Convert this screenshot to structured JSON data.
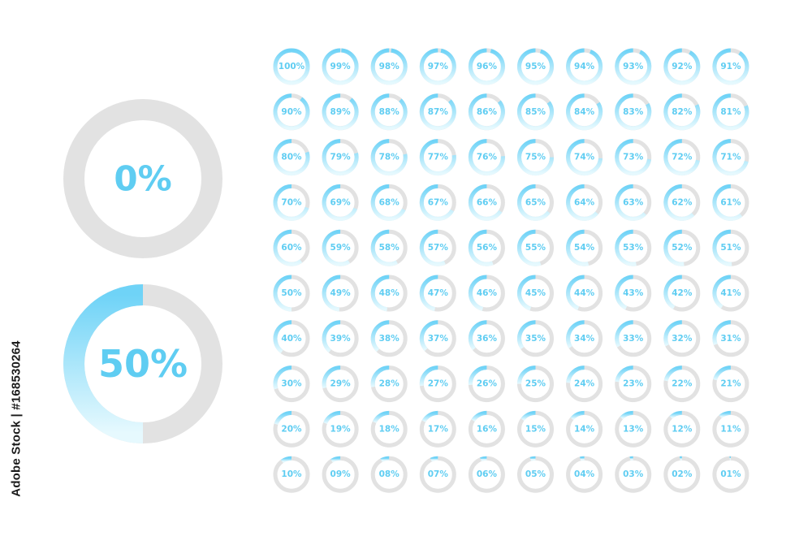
{
  "large_rings": [
    {
      "value": 0,
      "label": "0%"
    },
    {
      "value": 50,
      "label": "50%"
    }
  ],
  "grid": {
    "rows": [
      [
        "100%",
        "99%",
        "98%",
        "97%",
        "96%",
        "95%",
        "94%",
        "93%",
        "92%",
        "91%"
      ],
      [
        "90%",
        "89%",
        "88%",
        "87%",
        "86%",
        "85%",
        "84%",
        "83%",
        "82%",
        "81%"
      ],
      [
        "80%",
        "79%",
        "78%",
        "77%",
        "76%",
        "75%",
        "74%",
        "73%",
        "72%",
        "71%"
      ],
      [
        "70%",
        "69%",
        "68%",
        "67%",
        "66%",
        "65%",
        "64%",
        "63%",
        "62%",
        "61%"
      ],
      [
        "60%",
        "59%",
        "58%",
        "57%",
        "56%",
        "55%",
        "54%",
        "53%",
        "52%",
        "51%"
      ],
      [
        "50%",
        "49%",
        "48%",
        "47%",
        "46%",
        "45%",
        "44%",
        "43%",
        "42%",
        "41%"
      ],
      [
        "40%",
        "39%",
        "38%",
        "37%",
        "36%",
        "35%",
        "34%",
        "33%",
        "32%",
        "31%"
      ],
      [
        "30%",
        "29%",
        "28%",
        "27%",
        "26%",
        "25%",
        "24%",
        "23%",
        "22%",
        "21%"
      ],
      [
        "20%",
        "19%",
        "18%",
        "17%",
        "16%",
        "15%",
        "14%",
        "13%",
        "12%",
        "11%"
      ],
      [
        "10%",
        "09%",
        "08%",
        "07%",
        "06%",
        "05%",
        "04%",
        "03%",
        "02%",
        "01%"
      ]
    ]
  },
  "stock_id": "Adobe Stock | #168530264",
  "colors": {
    "track": "#e2e2e2",
    "progress_start": "#6fd3f7",
    "progress_end": "#e6f9fe",
    "text": "#5fcdf2"
  }
}
